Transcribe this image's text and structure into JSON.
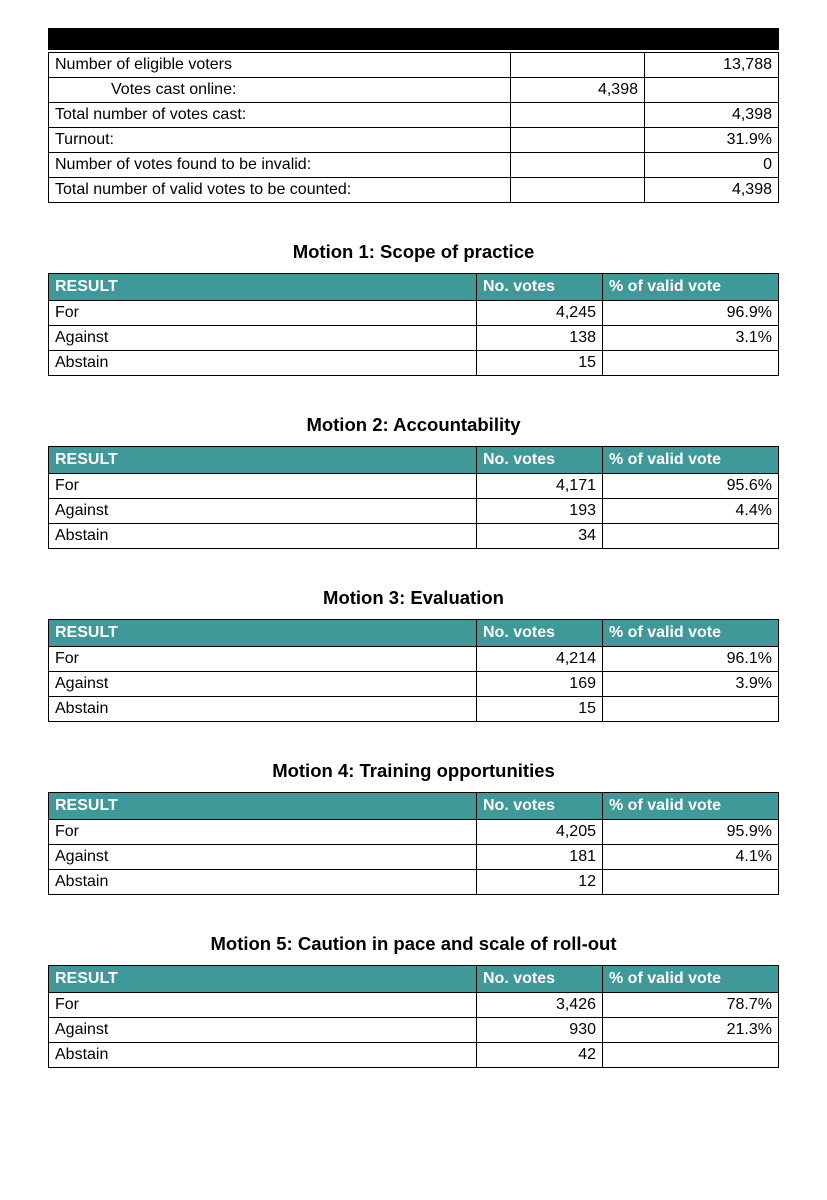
{
  "colors": {
    "teal": "#3f9999",
    "black": "#000000",
    "white": "#ffffff",
    "text": "#000000"
  },
  "summary": {
    "rows": [
      {
        "label": "Number of eligible voters",
        "indent": false,
        "mid": "",
        "right": "13,788"
      },
      {
        "label": "Votes cast online:",
        "indent": true,
        "mid": "4,398",
        "right": ""
      },
      {
        "label": "Total number of votes cast:",
        "indent": false,
        "mid": "",
        "right": "4,398"
      },
      {
        "label": "Turnout:",
        "indent": false,
        "mid": "",
        "right": "31.9%"
      },
      {
        "label": "Number of votes found to be invalid:",
        "indent": false,
        "mid": "",
        "right": "0"
      },
      {
        "label": "Total number of valid votes to be counted:",
        "indent": false,
        "mid": "",
        "right": "4,398"
      }
    ]
  },
  "motionHeaders": {
    "result": "RESULT",
    "votes": "No. votes",
    "pct": "% of valid vote"
  },
  "rowLabels": {
    "for": "For",
    "against": "Against",
    "abstain": "Abstain"
  },
  "motions": [
    {
      "title": "Motion 1: Scope of practice",
      "for": {
        "votes": "4,245",
        "pct": "96.9%"
      },
      "against": {
        "votes": "138",
        "pct": "3.1%"
      },
      "abstain": {
        "votes": "15",
        "pct": ""
      }
    },
    {
      "title": "Motion 2: Accountability",
      "for": {
        "votes": "4,171",
        "pct": "95.6%"
      },
      "against": {
        "votes": "193",
        "pct": "4.4%"
      },
      "abstain": {
        "votes": "34",
        "pct": ""
      }
    },
    {
      "title": "Motion 3: Evaluation",
      "for": {
        "votes": "4,214",
        "pct": "96.1%"
      },
      "against": {
        "votes": "169",
        "pct": "3.9%"
      },
      "abstain": {
        "votes": "15",
        "pct": ""
      }
    },
    {
      "title": "Motion 4: Training opportunities",
      "for": {
        "votes": "4,205",
        "pct": "95.9%"
      },
      "against": {
        "votes": "181",
        "pct": "4.1%"
      },
      "abstain": {
        "votes": "12",
        "pct": ""
      }
    },
    {
      "title": "Motion 5: Caution in pace and scale of roll-out",
      "for": {
        "votes": "3,426",
        "pct": "78.7%"
      },
      "against": {
        "votes": "930",
        "pct": "21.3%"
      },
      "abstain": {
        "votes": "42",
        "pct": ""
      }
    }
  ]
}
